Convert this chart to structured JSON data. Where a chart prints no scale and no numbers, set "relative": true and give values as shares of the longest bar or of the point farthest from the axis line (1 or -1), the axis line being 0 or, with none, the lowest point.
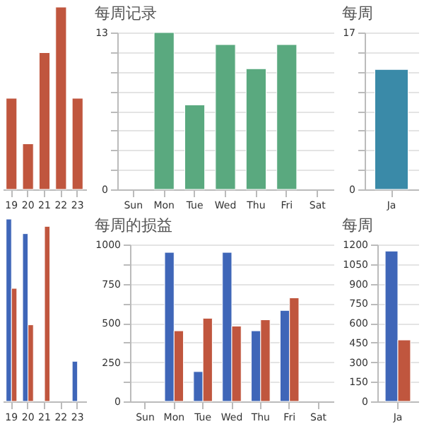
{
  "chart_data": [
    {
      "type": "bar",
      "relative": true,
      "categories": [
        "19",
        "20",
        "21",
        "22",
        "23"
      ],
      "series": [
        {
          "color": "#c0563e",
          "values": [
            0.5,
            0.25,
            0.75,
            1,
            0.5
          ]
        }
      ]
    },
    {
      "type": "bar",
      "title": "每周记录",
      "categories": [
        "Sun",
        "Mon",
        "Tue",
        "Wed",
        "Thu",
        "Fri",
        "Sat"
      ],
      "ylim": [
        0,
        13
      ],
      "yticks": [
        0,
        {
          "value": 1.625,
          "label": null
        },
        {
          "value": 3.25,
          "label": null
        },
        {
          "value": 4.875,
          "label": null
        },
        {
          "value": 6.5,
          "label": null
        },
        {
          "value": 8.125,
          "label": null
        },
        {
          "value": 9.75,
          "label": null
        },
        {
          "value": 11.375,
          "label": null
        },
        13
      ],
      "grid": "y",
      "series": [
        {
          "color": "#5aa97f",
          "values": [
            null,
            13,
            7,
            12,
            10,
            12,
            null
          ]
        }
      ]
    },
    {
      "type": "bar",
      "title": "每周",
      "categories": [
        "Ja"
      ],
      "ylim": [
        0,
        17
      ],
      "yticks": [
        0,
        {
          "value": 2.125,
          "label": null
        },
        {
          "value": 4.25,
          "label": null
        },
        {
          "value": 6.375,
          "label": null
        },
        {
          "value": 8.5,
          "label": null
        },
        {
          "value": 10.625,
          "label": null
        },
        {
          "value": 12.75,
          "label": null
        },
        {
          "value": 14.875,
          "label": null
        },
        17
      ],
      "grid": "y",
      "series": [
        {
          "color": "#3a8aa8",
          "values": [
            13
          ]
        }
      ]
    },
    {
      "type": "bar",
      "relative": true,
      "categories": [
        "19",
        "20",
        "21",
        "22",
        "23"
      ],
      "series": [
        {
          "color": "#3f66b8",
          "values": [
            1,
            0.92,
            null,
            null,
            0.22
          ]
        },
        {
          "color": "#c0563e",
          "values": [
            0.62,
            0.42,
            0.96,
            null,
            null
          ]
        }
      ]
    },
    {
      "type": "bar",
      "title": "每周的损益",
      "categories": [
        "Sun",
        "Mon",
        "Tue",
        "Wed",
        "Thu",
        "Fri",
        "Sat"
      ],
      "ylim": [
        0,
        1000
      ],
      "yticks": [
        0,
        {
          "value": 125,
          "label": null
        },
        250,
        {
          "value": 375,
          "label": null
        },
        500,
        {
          "value": 625,
          "label": null
        },
        750,
        {
          "value": 875,
          "label": null
        },
        1000
      ],
      "grid": "y",
      "series": [
        {
          "color": "#3f66b8",
          "values": [
            null,
            950,
            190,
            950,
            450,
            580,
            null
          ]
        },
        {
          "color": "#c0563e",
          "values": [
            null,
            450,
            530,
            480,
            520,
            660,
            null
          ]
        }
      ]
    },
    {
      "type": "bar",
      "title": "每周",
      "categories": [
        "Ja"
      ],
      "ylim": [
        0,
        1200
      ],
      "yticks": [
        0,
        150,
        300,
        450,
        600,
        750,
        900,
        1050,
        1200
      ],
      "grid": "y",
      "series": [
        {
          "color": "#3f66b8",
          "values": [
            1150
          ]
        },
        {
          "color": "#c0563e",
          "values": [
            470
          ]
        }
      ]
    }
  ]
}
